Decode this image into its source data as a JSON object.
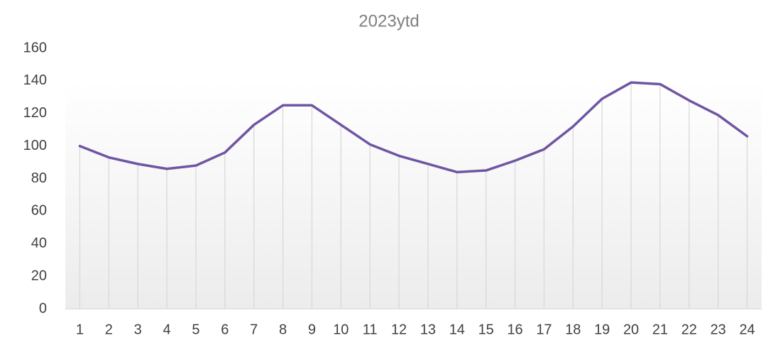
{
  "chart_data": {
    "type": "line",
    "title": "2023ytd",
    "categories": [
      "1",
      "2",
      "3",
      "4",
      "5",
      "6",
      "7",
      "8",
      "9",
      "10",
      "11",
      "12",
      "13",
      "14",
      "15",
      "16",
      "17",
      "18",
      "19",
      "20",
      "21",
      "22",
      "23",
      "24"
    ],
    "series": [
      {
        "name": "2023ytd",
        "color": "#6f55a3",
        "values": [
          100,
          93,
          89,
          86,
          88,
          96,
          113,
          125,
          125,
          113,
          101,
          94,
          89,
          84,
          85,
          91,
          98,
          112,
          129,
          139,
          138,
          128,
          119,
          106
        ]
      }
    ],
    "ylim": [
      0,
      160
    ],
    "yticks": [
      0,
      20,
      40,
      60,
      80,
      100,
      120,
      140,
      160
    ],
    "drop_lines": true
  }
}
